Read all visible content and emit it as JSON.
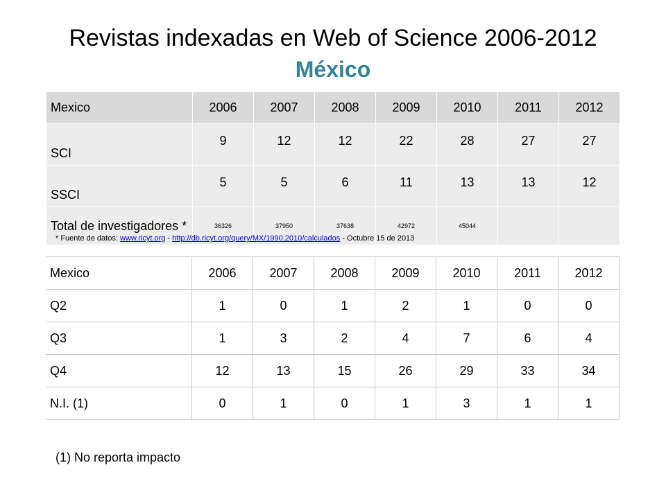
{
  "title": "Revistas indexadas en Web of Science 2006-2012",
  "subtitle": "México",
  "table1": {
    "headers": [
      "Mexico",
      "2006",
      "2007",
      "2008",
      "2009",
      "2010",
      "2011",
      "2012"
    ],
    "rows": [
      [
        "SCI",
        "9",
        "12",
        "12",
        "22",
        "28",
        "27",
        "27"
      ],
      [
        "SSCI",
        "5",
        "5",
        "6",
        "11",
        "13",
        "13",
        "12"
      ],
      [
        "Total de investigadores *",
        "36326",
        "37950",
        "37638",
        "42972",
        "45044",
        "",
        ""
      ]
    ]
  },
  "source_note": {
    "prefix": "* Fuente de datos: ",
    "link1": "www.ricyt.org",
    "sep": " - ",
    "link2": "http://db.ricyt.org/query/MX/1990,2010/calculados",
    "suffix": " - Octubre 15 de 2013"
  },
  "table2": {
    "headers": [
      "Mexico",
      "2006",
      "2007",
      "2008",
      "2009",
      "2010",
      "2011",
      "2012"
    ],
    "rows": [
      [
        "Q2",
        "1",
        "0",
        "1",
        "2",
        "1",
        "0",
        "0"
      ],
      [
        "Q3",
        "1",
        "3",
        "2",
        "4",
        "7",
        "6",
        "4"
      ],
      [
        "Q4",
        "12",
        "13",
        "15",
        "26",
        "29",
        "33",
        "34"
      ],
      [
        "N.I. (1)",
        "0",
        "1",
        "0",
        "1",
        "3",
        "1",
        "1"
      ]
    ]
  },
  "footnote": "(1) No reporta impacto"
}
